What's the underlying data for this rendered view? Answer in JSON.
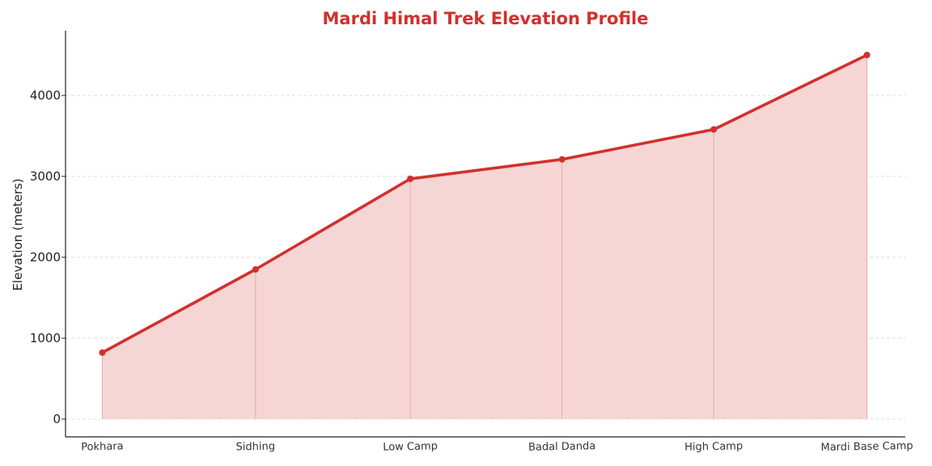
{
  "chart_data": {
    "type": "area",
    "title": "Mardi Himal Trek Elevation Profile",
    "xlabel": "",
    "ylabel": "Elevation (meters)",
    "categories": [
      "Pokhara",
      "Sidhing",
      "Low Camp",
      "Badal Danda",
      "High Camp",
      "Mardi Base Camp"
    ],
    "x": [
      0.0,
      1.0,
      2.01,
      3.0,
      3.99,
      4.99
    ],
    "values": [
      822,
      1850,
      2970,
      3210,
      3580,
      4500
    ],
    "ylim": [
      -220,
      4800
    ],
    "xlim": [
      -0.24,
      5.24
    ],
    "yticks": [
      0,
      1000,
      2000,
      3000,
      4000
    ],
    "ytick_labels": [
      "0",
      "1000",
      "2000",
      "3000",
      "4000"
    ],
    "grid": true,
    "colors": {
      "line": "#d0312d",
      "fill": "#f6d5d5",
      "title": "#d0312d"
    }
  }
}
